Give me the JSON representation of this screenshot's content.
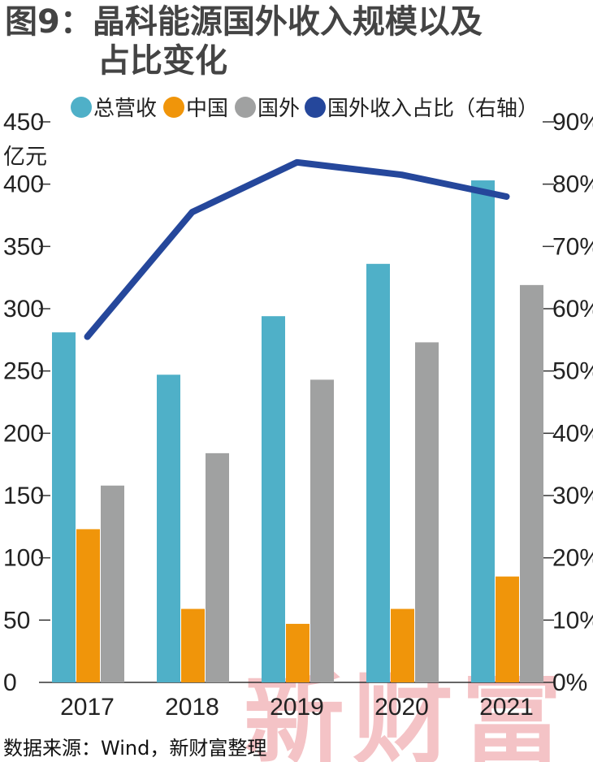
{
  "title_line1": "图9：晶科能源国外收入规模以及",
  "title_line2": "占比变化",
  "unit_left": "亿元",
  "source": "数据来源：Wind，新财富整理",
  "watermark": "新财富",
  "colors": {
    "total": "#4fb0c8",
    "domestic": "#f0950a",
    "overseas": "#a0a1a1",
    "ratio": "#25479b"
  },
  "chart_data": {
    "type": "bar",
    "categories": [
      "2017",
      "2018",
      "2019",
      "2020",
      "2021"
    ],
    "series": [
      {
        "name": "总营收",
        "type": "bar",
        "axis": "left",
        "values": [
          281,
          247,
          294,
          336,
          403
        ]
      },
      {
        "name": "中国",
        "type": "bar",
        "axis": "left",
        "values": [
          123,
          59,
          47,
          59,
          85
        ]
      },
      {
        "name": "国外",
        "type": "bar",
        "axis": "left",
        "values": [
          158,
          184,
          243,
          273,
          319
        ]
      },
      {
        "name": "国外收入占比（右轴）",
        "type": "line",
        "axis": "right",
        "values": [
          55.5,
          75.5,
          83.5,
          81.5,
          78
        ]
      }
    ],
    "ylim_left": [
      0,
      450
    ],
    "yticks_left": [
      "0",
      "50",
      "100",
      "150",
      "200",
      "250",
      "300",
      "350",
      "400",
      "450"
    ],
    "ylim_right": [
      0,
      90
    ],
    "yticks_right": [
      "0%",
      "10%",
      "20%",
      "30%",
      "40%",
      "50%",
      "60%",
      "70%",
      "80%",
      "90%"
    ],
    "legend_position": "top",
    "grid": false
  }
}
